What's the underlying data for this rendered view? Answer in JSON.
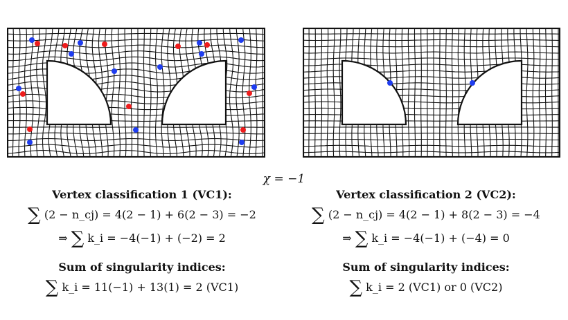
{
  "figure": {
    "chi_label": "χ = −1",
    "vc1": {
      "title": "Vertex classification 1 (VC1):",
      "eq1": "(2 − n_cj) = 4(2 − 1) + 6(2 − 3) = −2",
      "eq2_prefix": "⇒",
      "eq2": "k_i = −4(−1) + (−2) = 2"
    },
    "vc2": {
      "title": "Vertex classification 2 (VC2):",
      "eq1": "(2 − n_cj) = 4(2 − 1) + 8(2 − 3) = −4",
      "eq2_prefix": "⇒",
      "eq2": "k_i = −4(−1) + (−4) = 0"
    },
    "sum_left": {
      "title": "Sum of singularity indices:",
      "eq": "k_i = 11(−1) + 13(1) = 2 (VC1)"
    },
    "sum_right": {
      "title": "Sum of singularity indices:",
      "eq": "k_i = 2 (VC1) or 0 (VC2)"
    },
    "sum_symbol": "∑",
    "colors": {
      "negative_singularity": "#1f3df0",
      "positive_singularity": "#ee1c1c",
      "mesh": "#111111"
    }
  }
}
